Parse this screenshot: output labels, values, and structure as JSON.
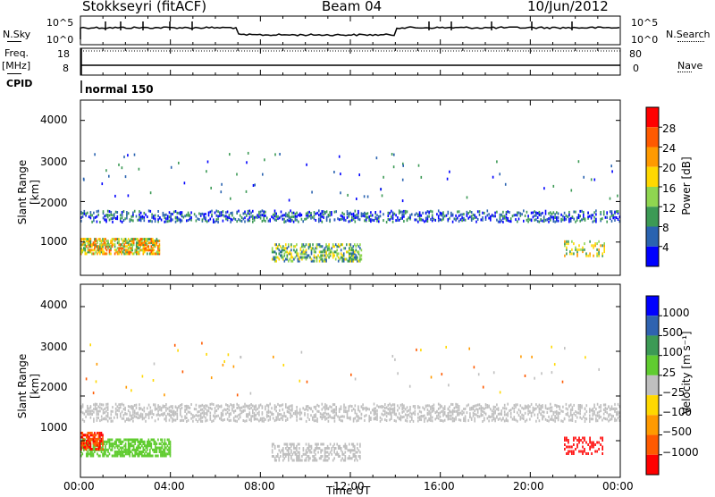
{
  "header": {
    "station": "Stokkseyri (fitACF)",
    "beam": "Beam 04",
    "date": "10/Jun/2012"
  },
  "status_panel": {
    "nsky_label": "N.Sky",
    "nsky_ticks": [
      "10^5",
      "10^0"
    ],
    "nsearch_label": "N.Search",
    "nsearch_ticks": [
      "10^5",
      "10^0"
    ],
    "freq_label": "Freq.",
    "freq_unit": "[MHz]",
    "freq_ticks": [
      "18",
      "8"
    ],
    "nave_label": "Nave",
    "nave_ticks": [
      "80",
      "0"
    ],
    "cpid_label": "CPID",
    "cpid_value": "normal 150"
  },
  "chart_data": [
    {
      "type": "heatmap",
      "name": "power",
      "ylabel": "Slant Range [km]",
      "yticks": [
        "4000",
        "3000",
        "2000",
        "1000"
      ],
      "ylim": [
        180,
        4500
      ],
      "xlim": [
        0,
        24
      ],
      "colorbar": {
        "title": "Power [dB]",
        "ticks": [
          "28",
          "24",
          "20",
          "16",
          "12",
          "8",
          "4"
        ],
        "colors": [
          "#ff0000",
          "#ff5a00",
          "#ff9a00",
          "#ffd800",
          "#8fd650",
          "#3c9a55",
          "#2a63b0",
          "#0000ff"
        ]
      },
      "features": [
        {
          "desc": "band",
          "t": [
            0,
            24
          ],
          "range": [
            1500,
            1700
          ],
          "power": 12
        },
        {
          "desc": "patch",
          "t": [
            0,
            3.5
          ],
          "range": [
            700,
            1100
          ],
          "power": 20
        },
        {
          "desc": "patch",
          "t": [
            8.5,
            12.5
          ],
          "range": [
            500,
            950
          ],
          "power": 14
        }
      ]
    },
    {
      "type": "heatmap",
      "name": "velocity",
      "ylabel": "Slant Range [km]",
      "yticks": [
        "4000",
        "3000",
        "2000",
        "1000"
      ],
      "ylim": [
        180,
        4500
      ],
      "xlim": [
        0,
        24
      ],
      "xticks": [
        "00:00",
        "04:00",
        "08:00",
        "12:00",
        "16:00",
        "20:00",
        "00:00"
      ],
      "xlabel": "Time UT",
      "colorbar": {
        "title": "Velocity [m s⁻¹]",
        "ticks": [
          "1000",
          "500",
          "100",
          "25",
          "−25",
          "−100",
          "−500",
          "−1000"
        ],
        "colors": [
          "#0000ff",
          "#2f63b0",
          "#3c9a55",
          "#60cc30",
          "#bfbfbf",
          "#ffd800",
          "#ff9a00",
          "#ff5a00",
          "#ff0000"
        ]
      },
      "features": [
        {
          "desc": "low-velocity band",
          "t": [
            0,
            24
          ],
          "range": [
            1400,
            1800
          ],
          "velocity": 0
        },
        {
          "desc": "patch",
          "t": [
            0,
            4
          ],
          "range": [
            650,
            1100
          ],
          "velocity": 150
        },
        {
          "desc": "patch",
          "t": [
            0,
            1
          ],
          "range": [
            800,
            1200
          ],
          "velocity": -900
        }
      ]
    }
  ]
}
